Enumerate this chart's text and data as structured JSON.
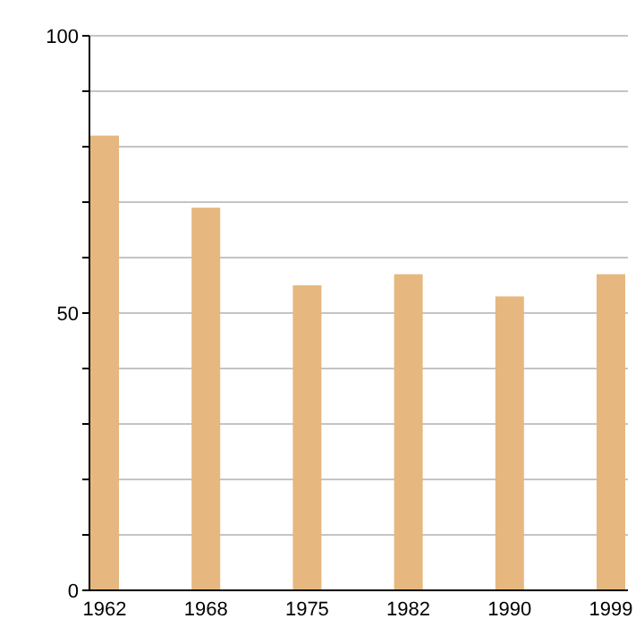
{
  "chart_data": {
    "type": "bar",
    "categories": [
      "1962",
      "1968",
      "1975",
      "1982",
      "1990",
      "1999"
    ],
    "values": [
      82,
      69,
      55,
      57,
      53,
      57
    ],
    "color": "#e6b77e",
    "ylim": [
      0,
      100
    ],
    "yticks": [
      0,
      {
        "value": 10,
        "label": null
      },
      {
        "value": 20,
        "label": null
      },
      {
        "value": 30,
        "label": null
      },
      {
        "value": 40,
        "label": null
      },
      50,
      {
        "value": 60,
        "label": null
      },
      {
        "value": 70,
        "label": null
      },
      {
        "value": 80,
        "label": null
      },
      {
        "value": 90,
        "label": null
      },
      100
    ],
    "grid": true
  }
}
